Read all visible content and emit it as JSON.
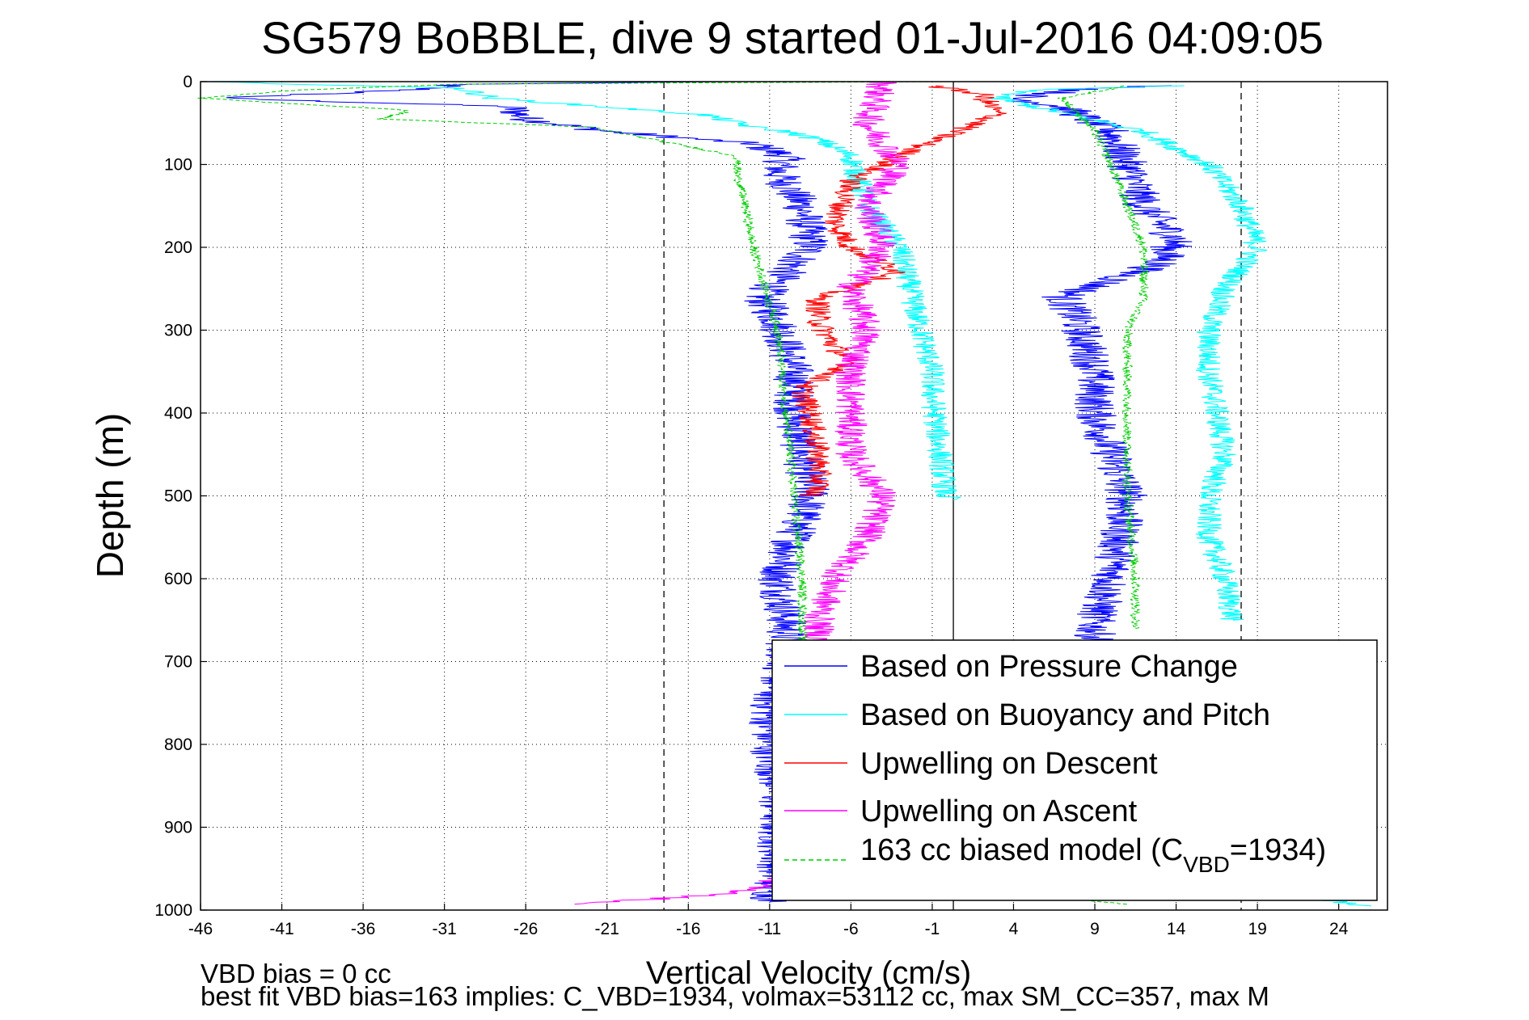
{
  "chart_data": {
    "type": "line",
    "title": "SG579 BoBBLE, dive 9 started 01-Jul-2016 04:09:05",
    "xlabel": "Vertical Velocity (cm/s)",
    "ylabel": "Depth (m)",
    "xlim": [
      -46,
      27
    ],
    "ylim": [
      0,
      1000
    ],
    "y_reversed": true,
    "grid": true,
    "x_ticks": [
      "-46",
      "-41",
      "-36",
      "-31",
      "-26",
      "-21",
      "-16",
      "-11",
      "-6",
      "-1",
      "4",
      "9",
      "14",
      "19",
      "24"
    ],
    "y_ticks": [
      "0",
      "100",
      "200",
      "300",
      "400",
      "500",
      "600",
      "700",
      "800",
      "900",
      "1000"
    ],
    "reference_lines": [
      {
        "x": -17.5,
        "style": "dashed",
        "color": "#000000"
      },
      {
        "x": 0.3,
        "style": "solid",
        "color": "#000000"
      },
      {
        "x": 18,
        "style": "dashed",
        "color": "#000000"
      }
    ],
    "legend_position": "bottom-right",
    "series": [
      {
        "name": "Based on Pressure Change",
        "color": "#0000ff",
        "noise": 1.3,
        "segments": [
          {
            "depth": [
              0,
              3,
              10,
              20,
              30,
              45,
              60,
              75,
              90,
              110,
              150,
              200,
              260,
              290,
              350,
              400,
              450,
              500,
              550,
              600,
              650,
              700,
              750,
              800,
              850,
              900,
              950,
              990
            ],
            "x": [
              -14,
              -30,
              -33,
              -45,
              -27,
              -26,
              -21,
              -12,
              -10,
              -10.5,
              -9,
              -8.5,
              -11.5,
              -10.5,
              -9.5,
              -9.5,
              -9,
              -8.5,
              -9.5,
              -10.5,
              -10,
              -10,
              -11,
              -11,
              -10.5,
              -10.5,
              -10.5,
              -11
            ]
          },
          {
            "depth": [
              5,
              10,
              15,
              20,
              30,
              60,
              100,
              150,
              190,
              220,
              260,
              290,
              350,
              400,
              450,
              500,
              550,
              600,
              650,
              700
            ],
            "x": [
              13,
              8,
              6,
              4,
              7,
              10,
              11,
              12,
              14,
              13,
              7,
              8,
              9,
              9,
              10,
              11,
              10.5,
              10,
              9,
              9
            ]
          }
        ]
      },
      {
        "name": "Based on Buoyancy and Pitch",
        "color": "#00ffff",
        "noise": 0.8,
        "segments": [
          {
            "depth": [
              0,
              8,
              20,
              40,
              55,
              60,
              70,
              90,
              150,
              200,
              280,
              350,
              380,
              450,
              500,
              505
            ],
            "x": [
              -46,
              -30,
              -28,
              -15,
              -12,
              -10,
              -8,
              -6,
              -5,
              -3,
              -2,
              -1,
              -1,
              -0.5,
              -0.2,
              0.3
            ]
          },
          {
            "depth": [
              5,
              10,
              20,
              60,
              100,
              150,
              200,
              250,
              300,
              350,
              400,
              450,
              500,
              550,
              600,
              650
            ],
            "x": [
              14,
              5,
              3,
              12,
              16,
              18,
              19,
              17,
              16,
              16,
              16.5,
              17,
              16,
              16,
              17,
              17.5
            ]
          },
          {
            "depth": [
              980,
              990,
              995
            ],
            "x": [
              20,
              24,
              26
            ]
          }
        ]
      },
      {
        "name": "Upwelling on Descent",
        "color": "#ff0000",
        "noise": 0.8,
        "segments": [
          {
            "depth": [
              5,
              15,
              40,
              80,
              120,
              170,
              200,
              230,
              260,
              290,
              320,
              340,
              370,
              400,
              450,
              490,
              500
            ],
            "x": [
              -1,
              2,
              3,
              -2,
              -6,
              -7,
              -6,
              -3,
              -8,
              -8,
              -7,
              -6,
              -9,
              -8.5,
              -8,
              -8,
              -8.5
            ]
          }
        ]
      },
      {
        "name": "Upwelling on Ascent",
        "color": "#ff00ff",
        "noise": 1.0,
        "segments": [
          {
            "depth": [
              0,
              50,
              100,
              150,
              200,
              250,
              300,
              350,
              400,
              450,
              500,
              550,
              600,
              650,
              700
            ],
            "x": [
              -4,
              -5,
              -3,
              -5,
              -4,
              -6,
              -5,
              -6,
              -6,
              -6,
              -4,
              -5,
              -7,
              -8,
              -8
            ]
          },
          {
            "depth": [
              920,
              960,
              980,
              993
            ],
            "x": [
              -9,
              -10,
              -13,
              -23
            ]
          }
        ]
      },
      {
        "name": "163 cc biased model (C_VBD=1934)",
        "color": "#00cc00",
        "noise": 0.3,
        "segments": [
          {
            "depth": [
              0,
              3,
              10,
              20,
              35,
              45,
              55,
              90,
              110,
              150,
              200,
              300,
              400,
              500,
              600,
              700
            ],
            "x": [
              -1,
              -30,
              -40,
              -46,
              -33,
              -35,
              -22,
              -13,
              -13,
              -12.5,
              -12,
              -10.5,
              -10,
              -9.5,
              -9,
              -9
            ]
          },
          {
            "depth": [
              5,
              20,
              60,
              100,
              150,
              200,
              260,
              300,
              400,
              500,
              600,
              660
            ],
            "x": [
              11,
              7,
              9,
              10,
              11,
              12,
              12,
              11,
              11,
              11,
              11.5,
              11.5
            ]
          },
          {
            "depth": [
              985,
              993
            ],
            "x": [
              7,
              11
            ]
          }
        ]
      }
    ]
  },
  "footer": {
    "line1": "VBD bias = 0 cc",
    "line2": "best fit VBD bias=163 implies: C_VBD=1934, volmax=53112 cc, max SM_CC=357, max M"
  },
  "legend": {
    "labels": [
      "Based on Pressure Change",
      "Based on Buoyancy and Pitch",
      "Upwelling on Descent",
      "Upwelling on Ascent"
    ],
    "model_prefix": "163 cc biased model (C",
    "model_sub": "VBD",
    "model_suffix": "=1934)"
  }
}
